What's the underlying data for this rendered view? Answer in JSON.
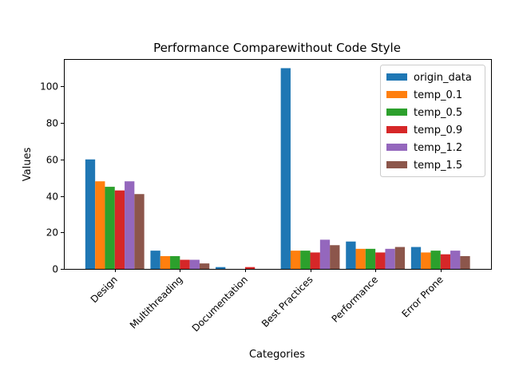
{
  "chart_data": {
    "type": "bar",
    "title": "Performance Comparewithout Code Style",
    "xlabel": "Categories",
    "ylabel": "Values",
    "categories": [
      "Design",
      "Multithreading",
      "Documentation",
      "Best Practices",
      "Performance",
      "Error Prone"
    ],
    "ylim": [
      0,
      115
    ],
    "yticks": [
      0,
      20,
      40,
      60,
      80,
      100
    ],
    "legend_position": "top-right",
    "series": [
      {
        "name": "origin_data",
        "color": "#1f77b4",
        "values": [
          60,
          10,
          1,
          110,
          15,
          12
        ]
      },
      {
        "name": "temp_0.1",
        "color": "#ff7f0e",
        "values": [
          48,
          7,
          0,
          10,
          11,
          9
        ]
      },
      {
        "name": "temp_0.5",
        "color": "#2ca02c",
        "values": [
          45,
          7,
          0,
          10,
          11,
          10
        ]
      },
      {
        "name": "temp_0.9",
        "color": "#d62728",
        "values": [
          43,
          5,
          1,
          9,
          9,
          8
        ]
      },
      {
        "name": "temp_1.2",
        "color": "#9467bd",
        "values": [
          48,
          5,
          0,
          16,
          11,
          10
        ]
      },
      {
        "name": "temp_1.5",
        "color": "#8c564b",
        "values": [
          41,
          3,
          0,
          13,
          12,
          7
        ]
      }
    ]
  }
}
